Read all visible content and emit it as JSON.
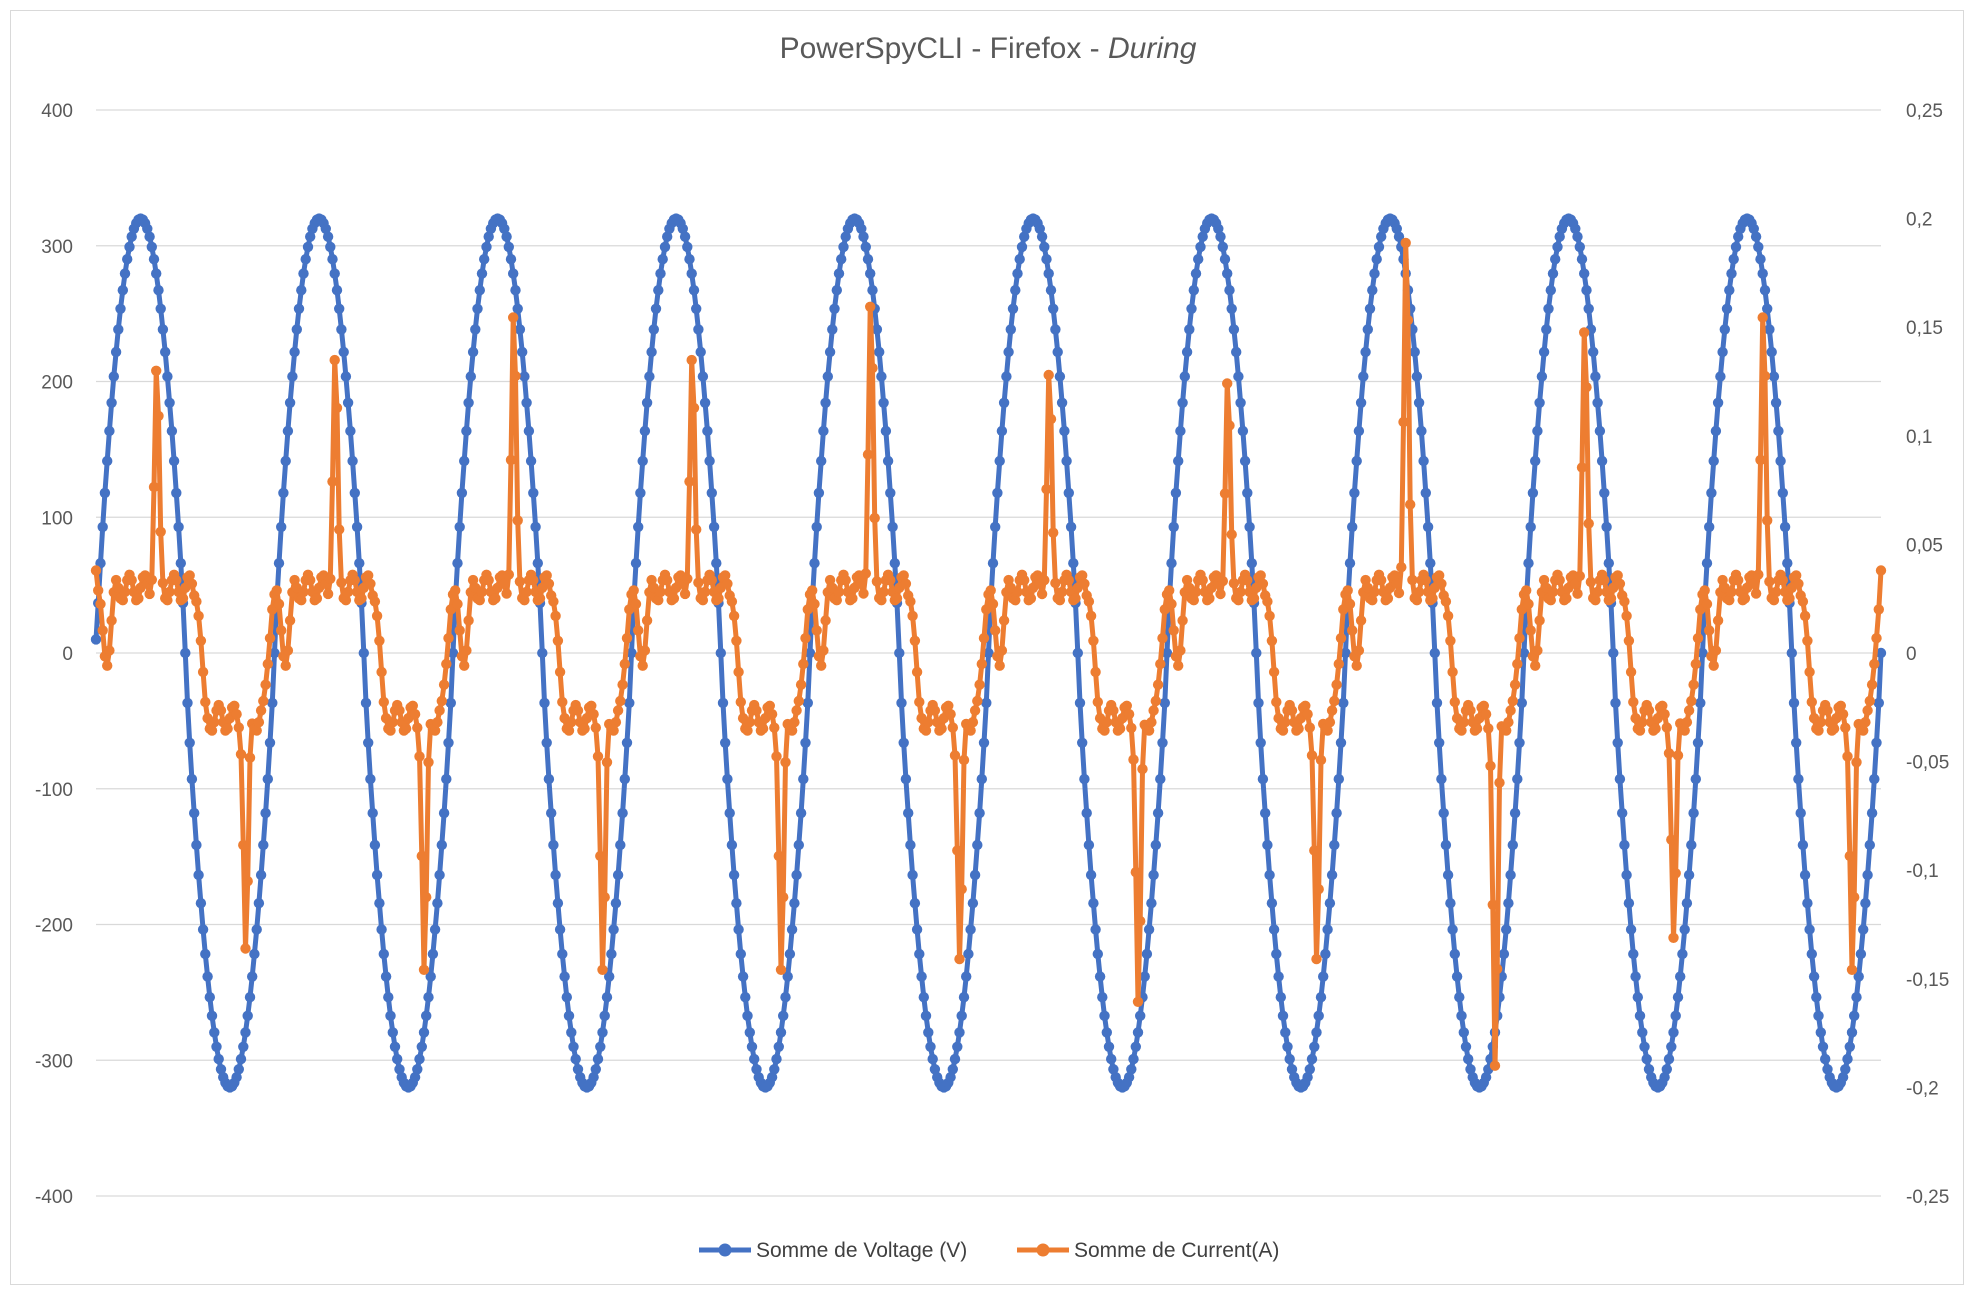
{
  "chart_data": {
    "type": "line",
    "title": "PowerSpyCLI - Firefox - ",
    "title_emphasis": "During",
    "xlabel": "",
    "ylabel": "",
    "y_left": {
      "ylim": [
        -400,
        400
      ],
      "ticks": [
        400,
        300,
        200,
        100,
        0,
        -100,
        -200,
        -300,
        -400
      ],
      "tick_labels": [
        "400",
        "300",
        "200",
        "100",
        "0",
        "-100",
        "-200",
        "-300",
        "-400"
      ]
    },
    "y_right": {
      "ylim": [
        -0.25,
        0.25
      ],
      "ticks": [
        0.25,
        0.2,
        0.15,
        0.1,
        0.05,
        0,
        -0.05,
        -0.1,
        -0.15,
        -0.2,
        -0.25
      ],
      "tick_labels": [
        "0,25",
        "0,2",
        "0,15",
        "0,1",
        "0,05",
        "0",
        "-0,05",
        "-0,1",
        "-0,15",
        "-0,2",
        "-0,25"
      ]
    },
    "grid": true,
    "legend_position": "bottom",
    "cycles": 10,
    "samples_per_cycle": 80,
    "series": [
      {
        "name": "Somme de Voltage (V)",
        "axis": "left",
        "color": "#4472C4",
        "amplitude": 320,
        "start": 10,
        "end": 0
      },
      {
        "name": "Somme de Current(A)",
        "axis": "right",
        "color": "#ED7D31",
        "plateau": 0.03,
        "start": 0.038,
        "end": 0.038,
        "positive_peaks": [
          0.13,
          0.135,
          0.155,
          0.135,
          0.16,
          0.128,
          0.124,
          0.19,
          0.148,
          0.155
        ],
        "negative_peaks": [
          -0.14,
          -0.15,
          -0.15,
          -0.15,
          -0.145,
          -0.165,
          -0.145,
          -0.195,
          -0.135,
          -0.15
        ]
      }
    ]
  }
}
